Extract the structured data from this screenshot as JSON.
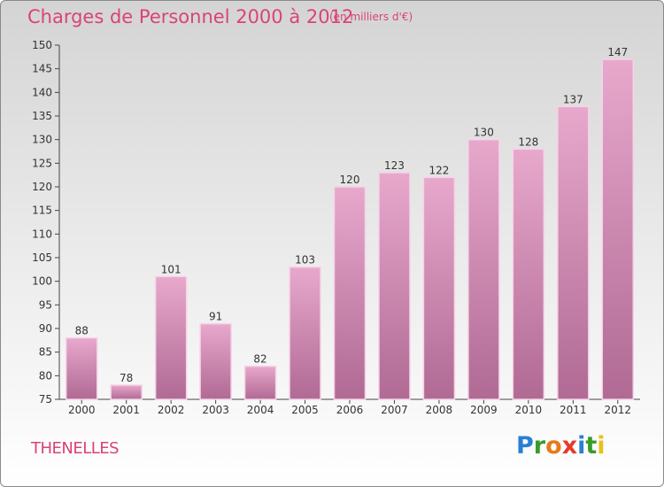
{
  "header": {
    "title": "Charges de Personnel 2000 à 2012",
    "subtitle": "(en milliers d'€)"
  },
  "footer": {
    "commune": "THENELLES",
    "logo_letters": [
      "P",
      "r",
      "o",
      "x",
      "i",
      "t",
      "i"
    ],
    "logo_colors": [
      "#2a7fd4",
      "#3a9b2a",
      "#e87a1a",
      "#e83a2a",
      "#2a7fd4",
      "#3a9b2a",
      "#e8c01a"
    ]
  },
  "colors": {
    "bar_top": "#e8a8cc",
    "bar_bottom": "#b06a94",
    "text_accent": "#d9437a"
  },
  "chart_data": {
    "type": "bar",
    "title": "Charges de Personnel 2000 à 2012",
    "subtitle": "(en milliers d'€)",
    "categories": [
      "2000",
      "2001",
      "2002",
      "2003",
      "2004",
      "2005",
      "2006",
      "2007",
      "2008",
      "2009",
      "2010",
      "2011",
      "2012"
    ],
    "values": [
      88,
      78,
      101,
      91,
      82,
      103,
      120,
      123,
      122,
      130,
      128,
      137,
      147
    ],
    "ylim": [
      75,
      150
    ],
    "yticks": [
      75,
      80,
      85,
      90,
      95,
      100,
      105,
      110,
      115,
      120,
      125,
      130,
      135,
      140,
      145,
      150
    ],
    "grid": false,
    "legend": "none"
  }
}
